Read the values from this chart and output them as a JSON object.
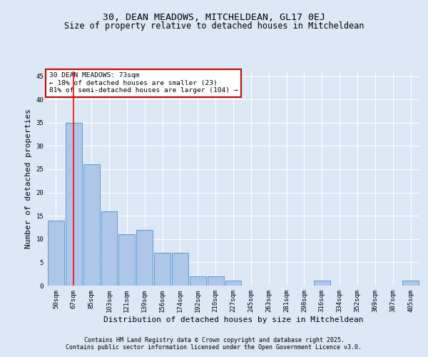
{
  "title_line1": "30, DEAN MEADOWS, MITCHELDEAN, GL17 0EJ",
  "title_line2": "Size of property relative to detached houses in Mitcheldean",
  "xlabel": "Distribution of detached houses by size in Mitcheldean",
  "ylabel": "Number of detached properties",
  "categories": [
    "50sqm",
    "67sqm",
    "85sqm",
    "103sqm",
    "121sqm",
    "139sqm",
    "156sqm",
    "174sqm",
    "192sqm",
    "210sqm",
    "227sqm",
    "245sqm",
    "263sqm",
    "281sqm",
    "298sqm",
    "316sqm",
    "334sqm",
    "352sqm",
    "369sqm",
    "387sqm",
    "405sqm"
  ],
  "values": [
    14,
    35,
    26,
    16,
    11,
    12,
    7,
    7,
    2,
    2,
    1,
    0,
    0,
    0,
    0,
    1,
    0,
    0,
    0,
    0,
    1
  ],
  "bar_color": "#aec6e8",
  "bar_edge_color": "#5b9bd5",
  "vline_x": 1.0,
  "vline_color": "#ff0000",
  "ylim": [
    0,
    46
  ],
  "yticks": [
    0,
    5,
    10,
    15,
    20,
    25,
    30,
    35,
    40,
    45
  ],
  "annotation_text": "30 DEAN MEADOWS: 73sqm\n← 18% of detached houses are smaller (23)\n81% of semi-detached houses are larger (104) →",
  "annotation_box_facecolor": "#ffffff",
  "annotation_box_edgecolor": "#cc0000",
  "footer_line1": "Contains HM Land Registry data © Crown copyright and database right 2025.",
  "footer_line2": "Contains public sector information licensed under the Open Government Licence v3.0.",
  "bg_color": "#dce8f5",
  "plot_bg_color": "#dce8f5",
  "grid_color": "#ffffff",
  "title_fontsize": 9.5,
  "subtitle_fontsize": 8.5,
  "tick_fontsize": 6.5,
  "label_fontsize": 8,
  "annot_fontsize": 6.8,
  "footer_fontsize": 6
}
